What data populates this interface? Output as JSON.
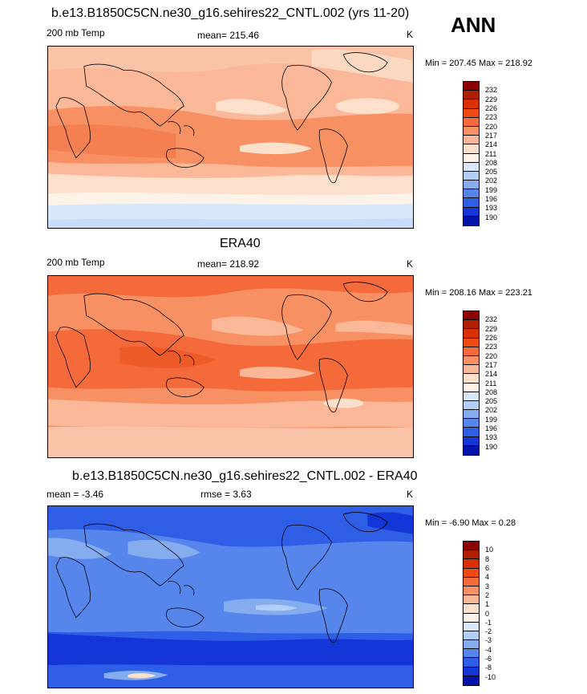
{
  "season": "ANN",
  "panels": [
    {
      "id": "model",
      "title": "b.e13.B1850C5CN.ne30_g16.sehires22_CNTL.002 (yrs 11-20)",
      "left_label": "200 mb Temp",
      "center_label": "mean= 215.46",
      "right_label": "K",
      "minmax": "Min = 207.45 Max = 218.92",
      "colorbar_labels": [
        "232",
        "229",
        "226",
        "223",
        "220",
        "217",
        "214",
        "211",
        "208",
        "205",
        "202",
        "199",
        "196",
        "193",
        "190"
      ],
      "colorbar_colors": [
        "#8b0000",
        "#b01e00",
        "#d83000",
        "#ee4a14",
        "#f46a3a",
        "#f79062",
        "#fab898",
        "#fde0cc",
        "#fdf2e8",
        "#d8e8fa",
        "#b0cef6",
        "#86acf0",
        "#5686ec",
        "#2f5ee6",
        "#1436d8",
        "#0012aa"
      ]
    },
    {
      "id": "obs",
      "title": "ERA40",
      "left_label": "200 mb Temp",
      "center_label": "mean= 218.92",
      "right_label": "K",
      "minmax": "Min = 208.16 Max = 223.21",
      "colorbar_labels": [
        "232",
        "229",
        "226",
        "223",
        "220",
        "217",
        "214",
        "211",
        "208",
        "205",
        "202",
        "199",
        "196",
        "193",
        "190"
      ],
      "colorbar_colors": [
        "#8b0000",
        "#b01e00",
        "#d83000",
        "#ee4a14",
        "#f46a3a",
        "#f79062",
        "#fab898",
        "#fde0cc",
        "#fdf2e8",
        "#d8e8fa",
        "#b0cef6",
        "#86acf0",
        "#5686ec",
        "#2f5ee6",
        "#1436d8",
        "#0012aa"
      ]
    },
    {
      "id": "diff",
      "title": "b.e13.B1850C5CN.ne30_g16.sehires22_CNTL.002 - ERA40",
      "left_label": "mean =  -3.46",
      "center_label": "rmse =   3.63",
      "right_label": "K",
      "minmax": "Min =  -6.90 Max =   0.28",
      "colorbar_labels": [
        "10",
        "8",
        "6",
        "4",
        "3",
        "2",
        "1",
        "0",
        "-1",
        "-2",
        "-3",
        "-4",
        "-6",
        "-8",
        "-10"
      ],
      "colorbar_colors": [
        "#8b0000",
        "#b01e00",
        "#d83000",
        "#ee4a14",
        "#f46a3a",
        "#f79062",
        "#fab898",
        "#fde0cc",
        "#fdf2e8",
        "#d8e8fa",
        "#b0cef6",
        "#86acf0",
        "#5686ec",
        "#2f5ee6",
        "#1436d8",
        "#0012aa"
      ]
    }
  ]
}
